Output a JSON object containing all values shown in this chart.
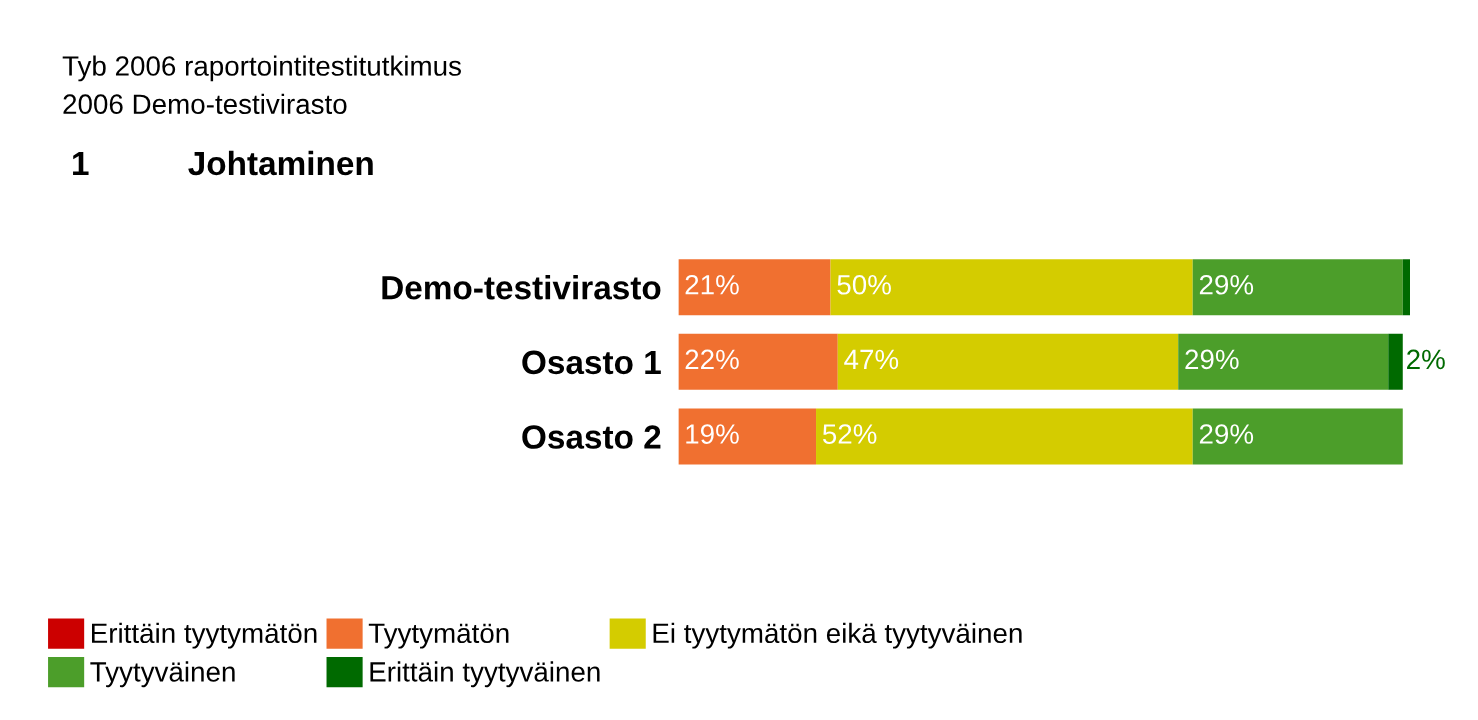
{
  "chart_data": {
    "type": "bar",
    "orientation": "horizontal",
    "stacked": true,
    "title": "Tyb 2006 raportointitestitutkimus",
    "subtitle": "2006 Demo-testivirasto",
    "annotations": [
      "1",
      "Johtaminen"
    ],
    "categories": [
      "Demo-testivirasto",
      "Osasto 1",
      "Osasto 2"
    ],
    "legend": "bottom left",
    "series": [
      {
        "name": "Erittäin tyytymätön",
        "color": "#cc0000",
        "values": [
          0,
          0,
          0
        ],
        "value_labels": [
          null,
          null,
          null
        ]
      },
      {
        "name": "Tyytymätön",
        "color": "#f07030",
        "values": [
          21,
          22,
          19
        ],
        "value_labels": [
          "21%",
          "22%",
          "19%"
        ]
      },
      {
        "name": "Ei tyytymätön eikä tyytyväinen",
        "color": "#d4cc00",
        "values": [
          50,
          47,
          52
        ],
        "value_labels": [
          "50%",
          "47%",
          "52%"
        ]
      },
      {
        "name": "Tyytyväinen",
        "color": "#4c9e2a",
        "values": [
          29,
          29,
          29
        ],
        "value_labels": [
          "29%",
          "29%",
          "29%"
        ]
      },
      {
        "name": "Erittäin tyytyväinen",
        "color": "#006a00",
        "values": [
          1,
          2,
          0
        ],
        "value_labels": [
          null,
          "2%",
          null
        ]
      }
    ]
  }
}
